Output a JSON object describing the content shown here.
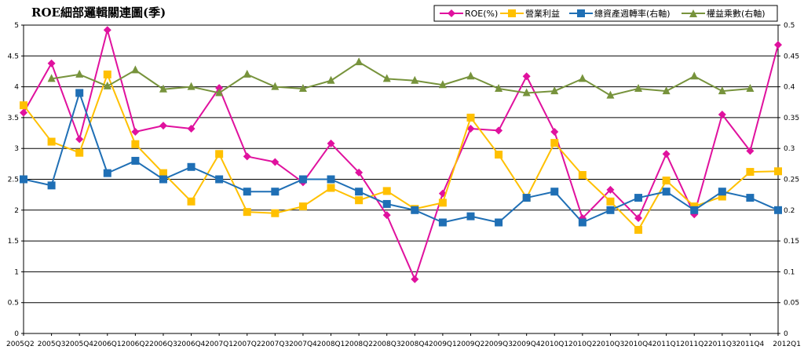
{
  "chart_data": {
    "type": "line",
    "title": "ROE細部邏輯關連圖(季)",
    "categories": [
      "2005Q2",
      "2005Q3",
      "2005Q4",
      "2006Q1",
      "2006Q2",
      "2006Q3",
      "2006Q4",
      "2007Q1",
      "2007Q2",
      "2007Q3",
      "2007Q4",
      "2008Q1",
      "2008Q2",
      "2008Q3",
      "2008Q4",
      "2009Q1",
      "2009Q2",
      "2009Q3",
      "2009Q4",
      "2010Q1",
      "2010Q2",
      "2010Q3",
      "2010Q4",
      "2011Q1",
      "2011Q2",
      "2011Q3",
      "2011Q4",
      "2012Q1"
    ],
    "y_left": {
      "min": 0,
      "max": 5,
      "ticks": [
        "0",
        "0.5",
        "1",
        "1.5",
        "2",
        "2.5",
        "3",
        "3.5",
        "4",
        "4.5",
        "5"
      ]
    },
    "y_right": {
      "min": 0,
      "max": 0.5,
      "ticks": [
        "0",
        "0.05",
        "0.1",
        "0.15",
        "0.2",
        "0.25",
        "0.3",
        "0.35",
        "0.4",
        "0.45",
        "0.5"
      ]
    },
    "grid": true,
    "legend_position": "top-right",
    "series": [
      {
        "name": "ROE(%)",
        "axis": "left",
        "marker": "diamond",
        "color": "#E0119E",
        "values": [
          3.58,
          4.38,
          3.15,
          4.92,
          3.27,
          3.37,
          3.32,
          3.98,
          2.87,
          2.78,
          2.45,
          3.08,
          2.61,
          1.92,
          0.88,
          2.27,
          3.32,
          3.29,
          4.17,
          3.27,
          1.87,
          2.33,
          1.87,
          2.91,
          1.93,
          3.55,
          2.96,
          4.68
        ]
      },
      {
        "name": "營業利益",
        "axis": "left",
        "marker": "square",
        "color": "#FFC000",
        "values": [
          3.7,
          3.11,
          2.93,
          4.2,
          3.07,
          2.6,
          2.14,
          2.91,
          1.97,
          1.95,
          2.06,
          2.36,
          2.16,
          2.31,
          2.02,
          2.12,
          3.5,
          2.9,
          2.2,
          3.09,
          2.57,
          2.14,
          1.68,
          2.48,
          2.06,
          2.22,
          2.62,
          2.63
        ]
      },
      {
        "name": "總資產週轉率(右軸)",
        "axis": "right",
        "marker": "square",
        "color": "#1F6FB5",
        "values": [
          0.25,
          0.24,
          0.39,
          0.26,
          0.28,
          0.25,
          0.27,
          0.25,
          0.23,
          0.23,
          0.25,
          0.25,
          0.23,
          0.21,
          0.2,
          0.18,
          0.19,
          0.18,
          0.22,
          0.23,
          0.18,
          0.2,
          0.22,
          0.23,
          0.2,
          0.23,
          0.22,
          0.2
        ]
      },
      {
        "name": "權益乘數(右軸)",
        "axis": "right",
        "marker": "triangle",
        "color": "#77933C",
        "values": [
          null,
          0.413,
          0.42,
          0.401,
          0.427,
          0.396,
          0.4,
          0.39,
          0.42,
          0.4,
          0.397,
          0.41,
          0.44,
          0.413,
          0.41,
          0.403,
          0.417,
          0.397,
          0.39,
          0.393,
          0.413,
          0.386,
          0.397,
          0.393,
          0.417,
          0.393,
          0.397,
          null
        ]
      }
    ]
  }
}
